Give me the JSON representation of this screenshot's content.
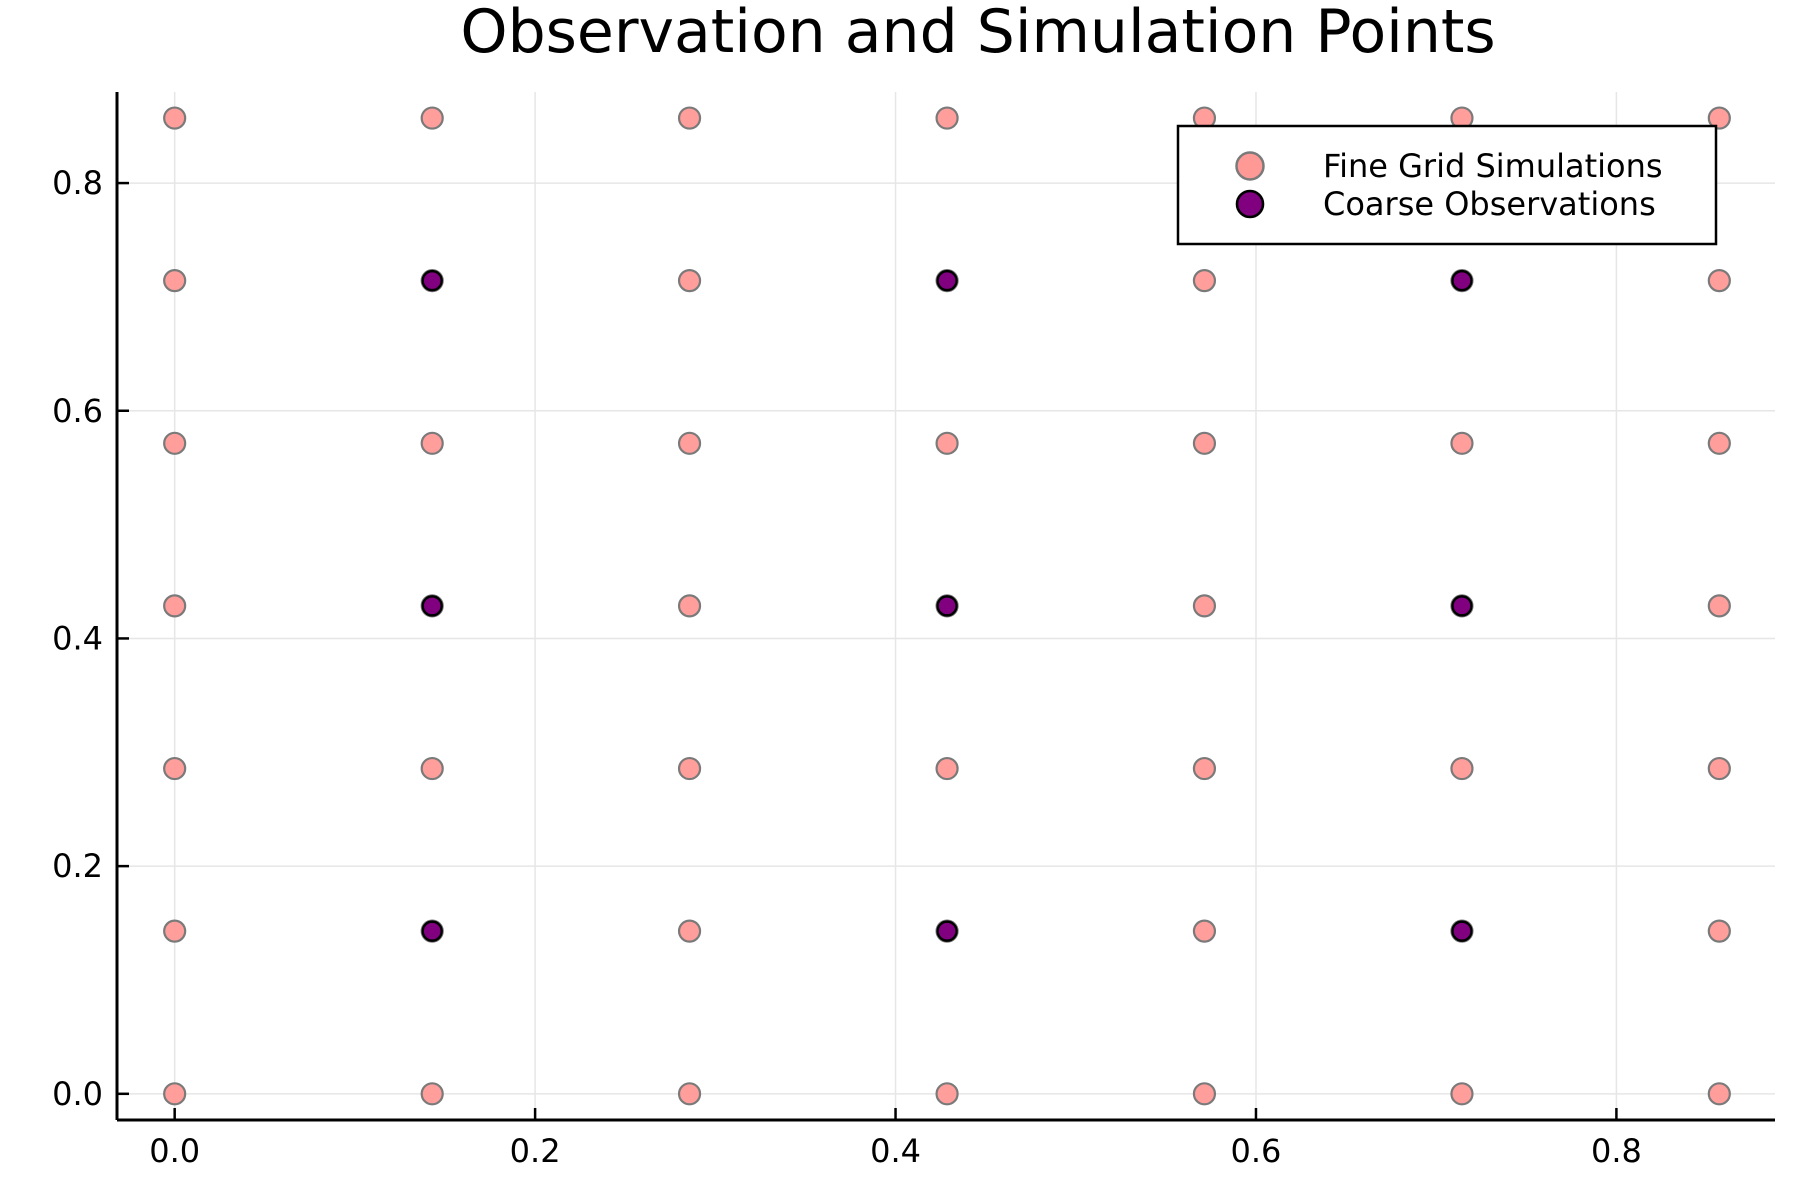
{
  "chart_data": {
    "type": "scatter",
    "title": "Observation and Simulation Points",
    "xlabel": "",
    "ylabel": "",
    "xlim": [
      -0.032,
      0.888
    ],
    "ylim": [
      -0.023,
      0.88
    ],
    "x_ticks": [
      0.0,
      0.2,
      0.4,
      0.6,
      0.8
    ],
    "y_ticks": [
      0.0,
      0.2,
      0.4,
      0.6,
      0.8
    ],
    "x_tick_labels": [
      "0.0",
      "0.2",
      "0.4",
      "0.6",
      "0.8"
    ],
    "y_tick_labels": [
      "0.0",
      "0.2",
      "0.4",
      "0.6",
      "0.8"
    ],
    "grid": true,
    "legend_position": "top-right",
    "series": [
      {
        "name": "Fine Grid Simulations",
        "color": "#ff9996",
        "edge_color": "#7a7a7a",
        "marker": "circle",
        "x": [
          0,
          0.1429,
          0.2857,
          0.4286,
          0.5714,
          0.7143,
          0.8571
        ],
        "y": [
          0,
          0.1429,
          0.2857,
          0.4286,
          0.5714,
          0.7143,
          0.8571
        ],
        "grid_product": true
      },
      {
        "name": "Coarse Observations",
        "color": "#800080",
        "edge_color": "#000000",
        "marker": "circle",
        "x": [
          0.1429,
          0.4286,
          0.7143
        ],
        "y": [
          0.1429,
          0.4286,
          0.7143
        ],
        "grid_product": true
      }
    ]
  }
}
